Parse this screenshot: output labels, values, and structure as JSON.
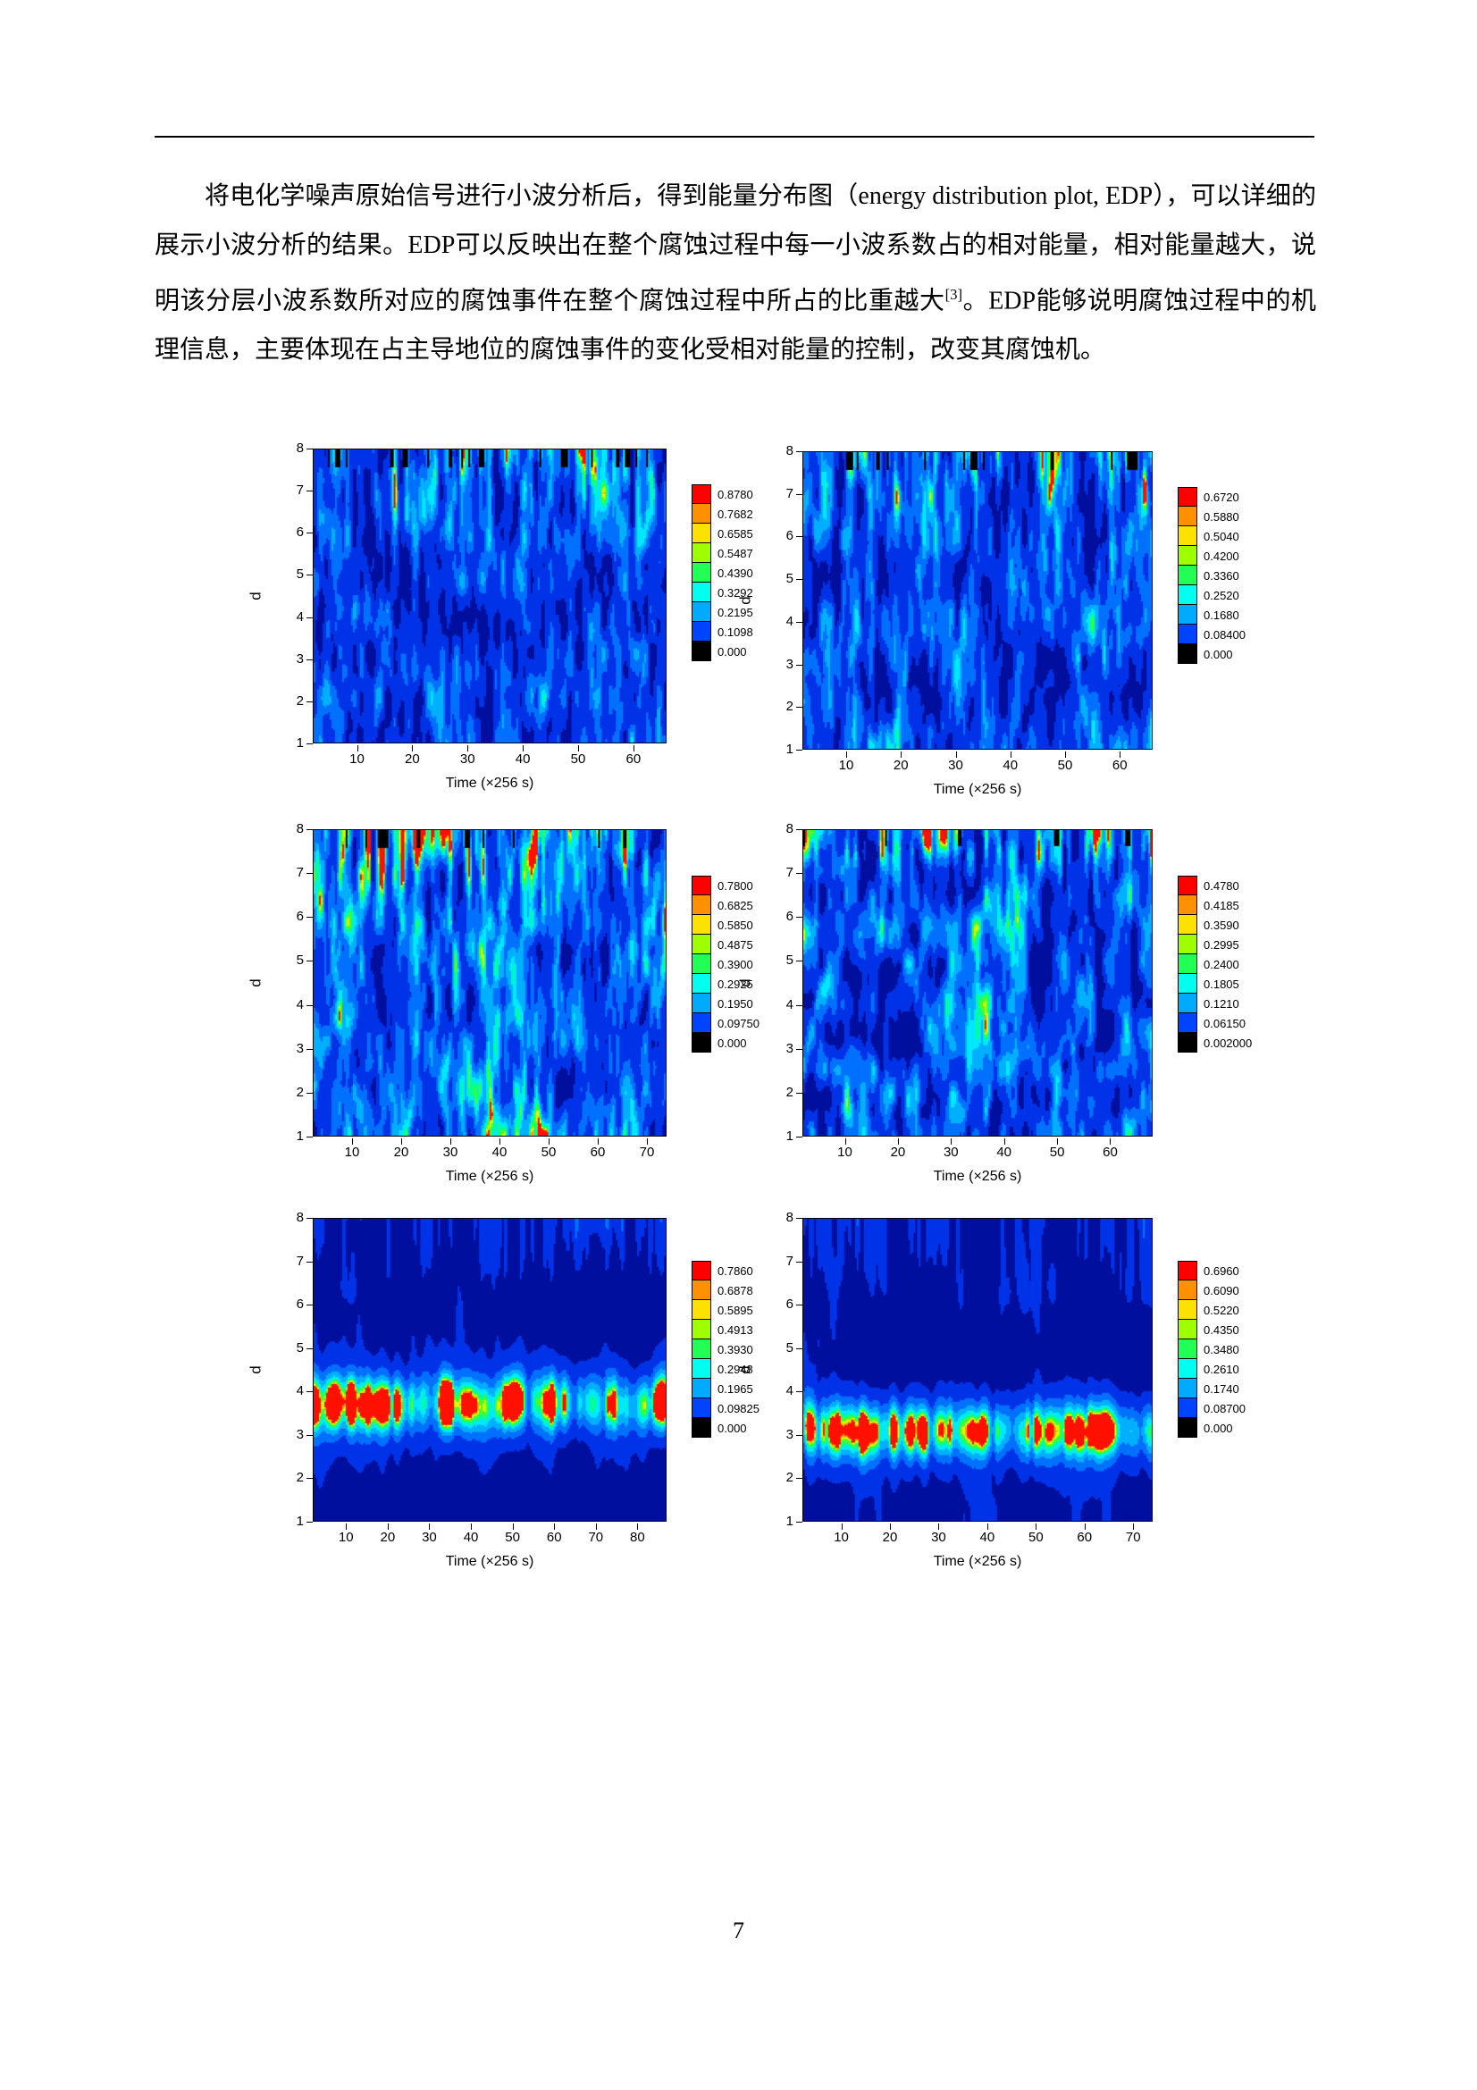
{
  "page": {
    "number": "7",
    "paragraph": {
      "lead": "将电化学噪声原始信号进行小波分析后，得到能量分布图（energy distribution plot, EDP），可以详细的展示小波分析的结果。EDP可以反映出在整个腐蚀过程中每一小波系数占的相对能量，相对能量越大，说明该分层小波系数所对应的腐蚀事件在整个腐蚀过程中所占的比重越大",
      "superscript": "[3]",
      "rest": "。EDP能够说明腐蚀过程中的机理信息，主要体现在占主导地位的腐蚀事件的变化受相对能量的控制，改变其腐蚀机。"
    }
  },
  "chart_data": [
    {
      "type": "contour",
      "title": "",
      "xlabel": "Time (×256 s)",
      "ylabel": "d",
      "xticks": [
        10,
        20,
        30,
        40,
        50,
        60
      ],
      "yticks": [
        8,
        7,
        6,
        5,
        4,
        3,
        2,
        1
      ],
      "xlim": [
        2,
        66
      ],
      "ylim": [
        1,
        8
      ],
      "legend_levels": [
        "0.8780",
        "0.7682",
        "0.6585",
        "0.5487",
        "0.4390",
        "0.3292",
        "0.2195",
        "0.1098",
        "0.000"
      ],
      "legend_colors": [
        "#ff0000",
        "#ff9100",
        "#ffe100",
        "#9fff00",
        "#22ff55",
        "#00ffee",
        "#00aaff",
        "#0044ff",
        "#000000"
      ],
      "pattern": "vertical-streaks",
      "grid": false,
      "legend_position": "right"
    },
    {
      "type": "contour",
      "title": "",
      "xlabel": "Time (×256 s)",
      "ylabel": "d",
      "xticks": [
        10,
        20,
        30,
        40,
        50,
        60
      ],
      "yticks": [
        8,
        7,
        6,
        5,
        4,
        3,
        2,
        1
      ],
      "xlim": [
        2,
        66
      ],
      "ylim": [
        1,
        8
      ],
      "legend_levels": [
        "0.6720",
        "0.5880",
        "0.5040",
        "0.4200",
        "0.3360",
        "0.2520",
        "0.1680",
        "0.08400",
        "0.000"
      ],
      "legend_colors": [
        "#ff0000",
        "#ff9100",
        "#ffe100",
        "#9fff00",
        "#22ff55",
        "#00ffee",
        "#00aaff",
        "#0044ff",
        "#000000"
      ],
      "pattern": "vertical-streaks",
      "grid": false,
      "legend_position": "right"
    },
    {
      "type": "contour",
      "title": "",
      "xlabel": "Time (×256 s)",
      "ylabel": "d",
      "xticks": [
        10,
        20,
        30,
        40,
        50,
        60,
        70
      ],
      "yticks": [
        8,
        7,
        6,
        5,
        4,
        3,
        2,
        1
      ],
      "xlim": [
        2,
        74
      ],
      "ylim": [
        1,
        8
      ],
      "legend_levels": [
        "0.7800",
        "0.6825",
        "0.5850",
        "0.4875",
        "0.3900",
        "0.2925",
        "0.1950",
        "0.09750",
        "0.000"
      ],
      "legend_colors": [
        "#ff0000",
        "#ff9100",
        "#ffe100",
        "#9fff00",
        "#22ff55",
        "#00ffee",
        "#00aaff",
        "#0044ff",
        "#000000"
      ],
      "pattern": "vertical-streaks-dense",
      "grid": false,
      "legend_position": "right"
    },
    {
      "type": "contour",
      "title": "",
      "xlabel": "Time (×256 s)",
      "ylabel": "d",
      "xticks": [
        10,
        20,
        30,
        40,
        50,
        60
      ],
      "yticks": [
        8,
        7,
        6,
        5,
        4,
        3,
        2,
        1
      ],
      "xlim": [
        2,
        68
      ],
      "ylim": [
        1,
        8
      ],
      "legend_levels": [
        "0.4780",
        "0.4185",
        "0.3590",
        "0.2995",
        "0.2400",
        "0.1805",
        "0.1210",
        "0.06150",
        "0.002000"
      ],
      "legend_colors": [
        "#ff0000",
        "#ff9100",
        "#ffe100",
        "#9fff00",
        "#22ff55",
        "#00ffee",
        "#00aaff",
        "#0044ff",
        "#000000"
      ],
      "pattern": "mottled",
      "grid": false,
      "legend_position": "right"
    },
    {
      "type": "contour",
      "title": "",
      "xlabel": "Time (×256 s)",
      "ylabel": "d",
      "xticks": [
        10,
        20,
        30,
        40,
        50,
        60,
        70,
        80
      ],
      "yticks": [
        8,
        7,
        6,
        5,
        4,
        3,
        2,
        1
      ],
      "xlim": [
        2,
        87
      ],
      "ylim": [
        1,
        8
      ],
      "legend_levels": [
        "0.7860",
        "0.6878",
        "0.5895",
        "0.4913",
        "0.3930",
        "0.2948",
        "0.1965",
        "0.09825",
        "0.000"
      ],
      "legend_colors": [
        "#ff0000",
        "#ff9100",
        "#ffe100",
        "#9fff00",
        "#22ff55",
        "#00ffee",
        "#00aaff",
        "#0044ff",
        "#000000"
      ],
      "pattern": "horizontal-band",
      "band_center_d": 3.7,
      "grid": false,
      "legend_position": "right"
    },
    {
      "type": "contour",
      "title": "",
      "xlabel": "Time (×256 s)",
      "ylabel": "d",
      "xticks": [
        10,
        20,
        30,
        40,
        50,
        60,
        70
      ],
      "yticks": [
        8,
        7,
        6,
        5,
        4,
        3,
        2,
        1
      ],
      "xlim": [
        2,
        74
      ],
      "ylim": [
        1,
        8
      ],
      "legend_levels": [
        "0.6960",
        "0.6090",
        "0.5220",
        "0.4350",
        "0.3480",
        "0.2610",
        "0.1740",
        "0.08700",
        "0.000"
      ],
      "legend_colors": [
        "#ff0000",
        "#ff9100",
        "#ffe100",
        "#9fff00",
        "#22ff55",
        "#00ffee",
        "#00aaff",
        "#0044ff",
        "#000000"
      ],
      "pattern": "horizontal-band",
      "band_center_d": 3.1,
      "grid": false,
      "legend_position": "right"
    }
  ]
}
